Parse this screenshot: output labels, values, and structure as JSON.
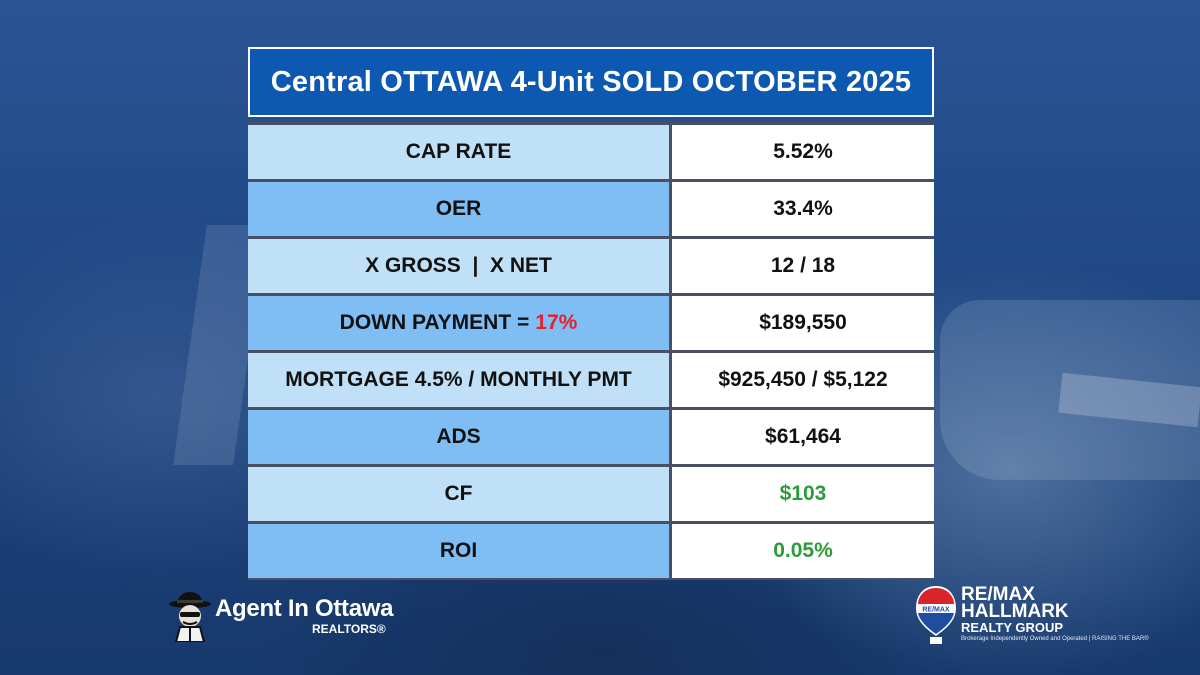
{
  "title": "Central OTTAWA 4-Unit SOLD OCTOBER 2025",
  "rows": [
    {
      "label": "CAP RATE",
      "value": "5.52%"
    },
    {
      "label": "OER",
      "value": "33.4%"
    },
    {
      "label": "X GROSS  |  X NET",
      "value": "12 / 18"
    },
    {
      "label": "DOWN PAYMENT =",
      "label_highlight": "17%",
      "value": "$189,550"
    },
    {
      "label": "MORTGAGE 4.5% / MONTHLY PMT",
      "value": "$925,450 / $5,122"
    },
    {
      "label": "ADS",
      "value": "$61,464"
    },
    {
      "label": "CF",
      "value": "$103"
    },
    {
      "label": "ROI",
      "value": "0.05%"
    }
  ],
  "colors": {
    "title_bg": "#0d58b0",
    "row_light": "#bfe0f7",
    "row_dark": "#7fbdf5",
    "highlight_red": "#e0232d",
    "positive_green": "#2e9b3b"
  },
  "logo_left": {
    "name": "Agent In Ottawa",
    "sub": "REALTORS®",
    "icon": "detective-mascot-icon"
  },
  "logo_right": {
    "badge": "RE/MAX",
    "line1": "RE/MAX",
    "line2": "HALLMARK",
    "line3": "REALTY GROUP",
    "tagline": "Brokerage Independently Owned and Operated | RAISING THE BAR®",
    "icon": "remax-balloon-icon"
  }
}
